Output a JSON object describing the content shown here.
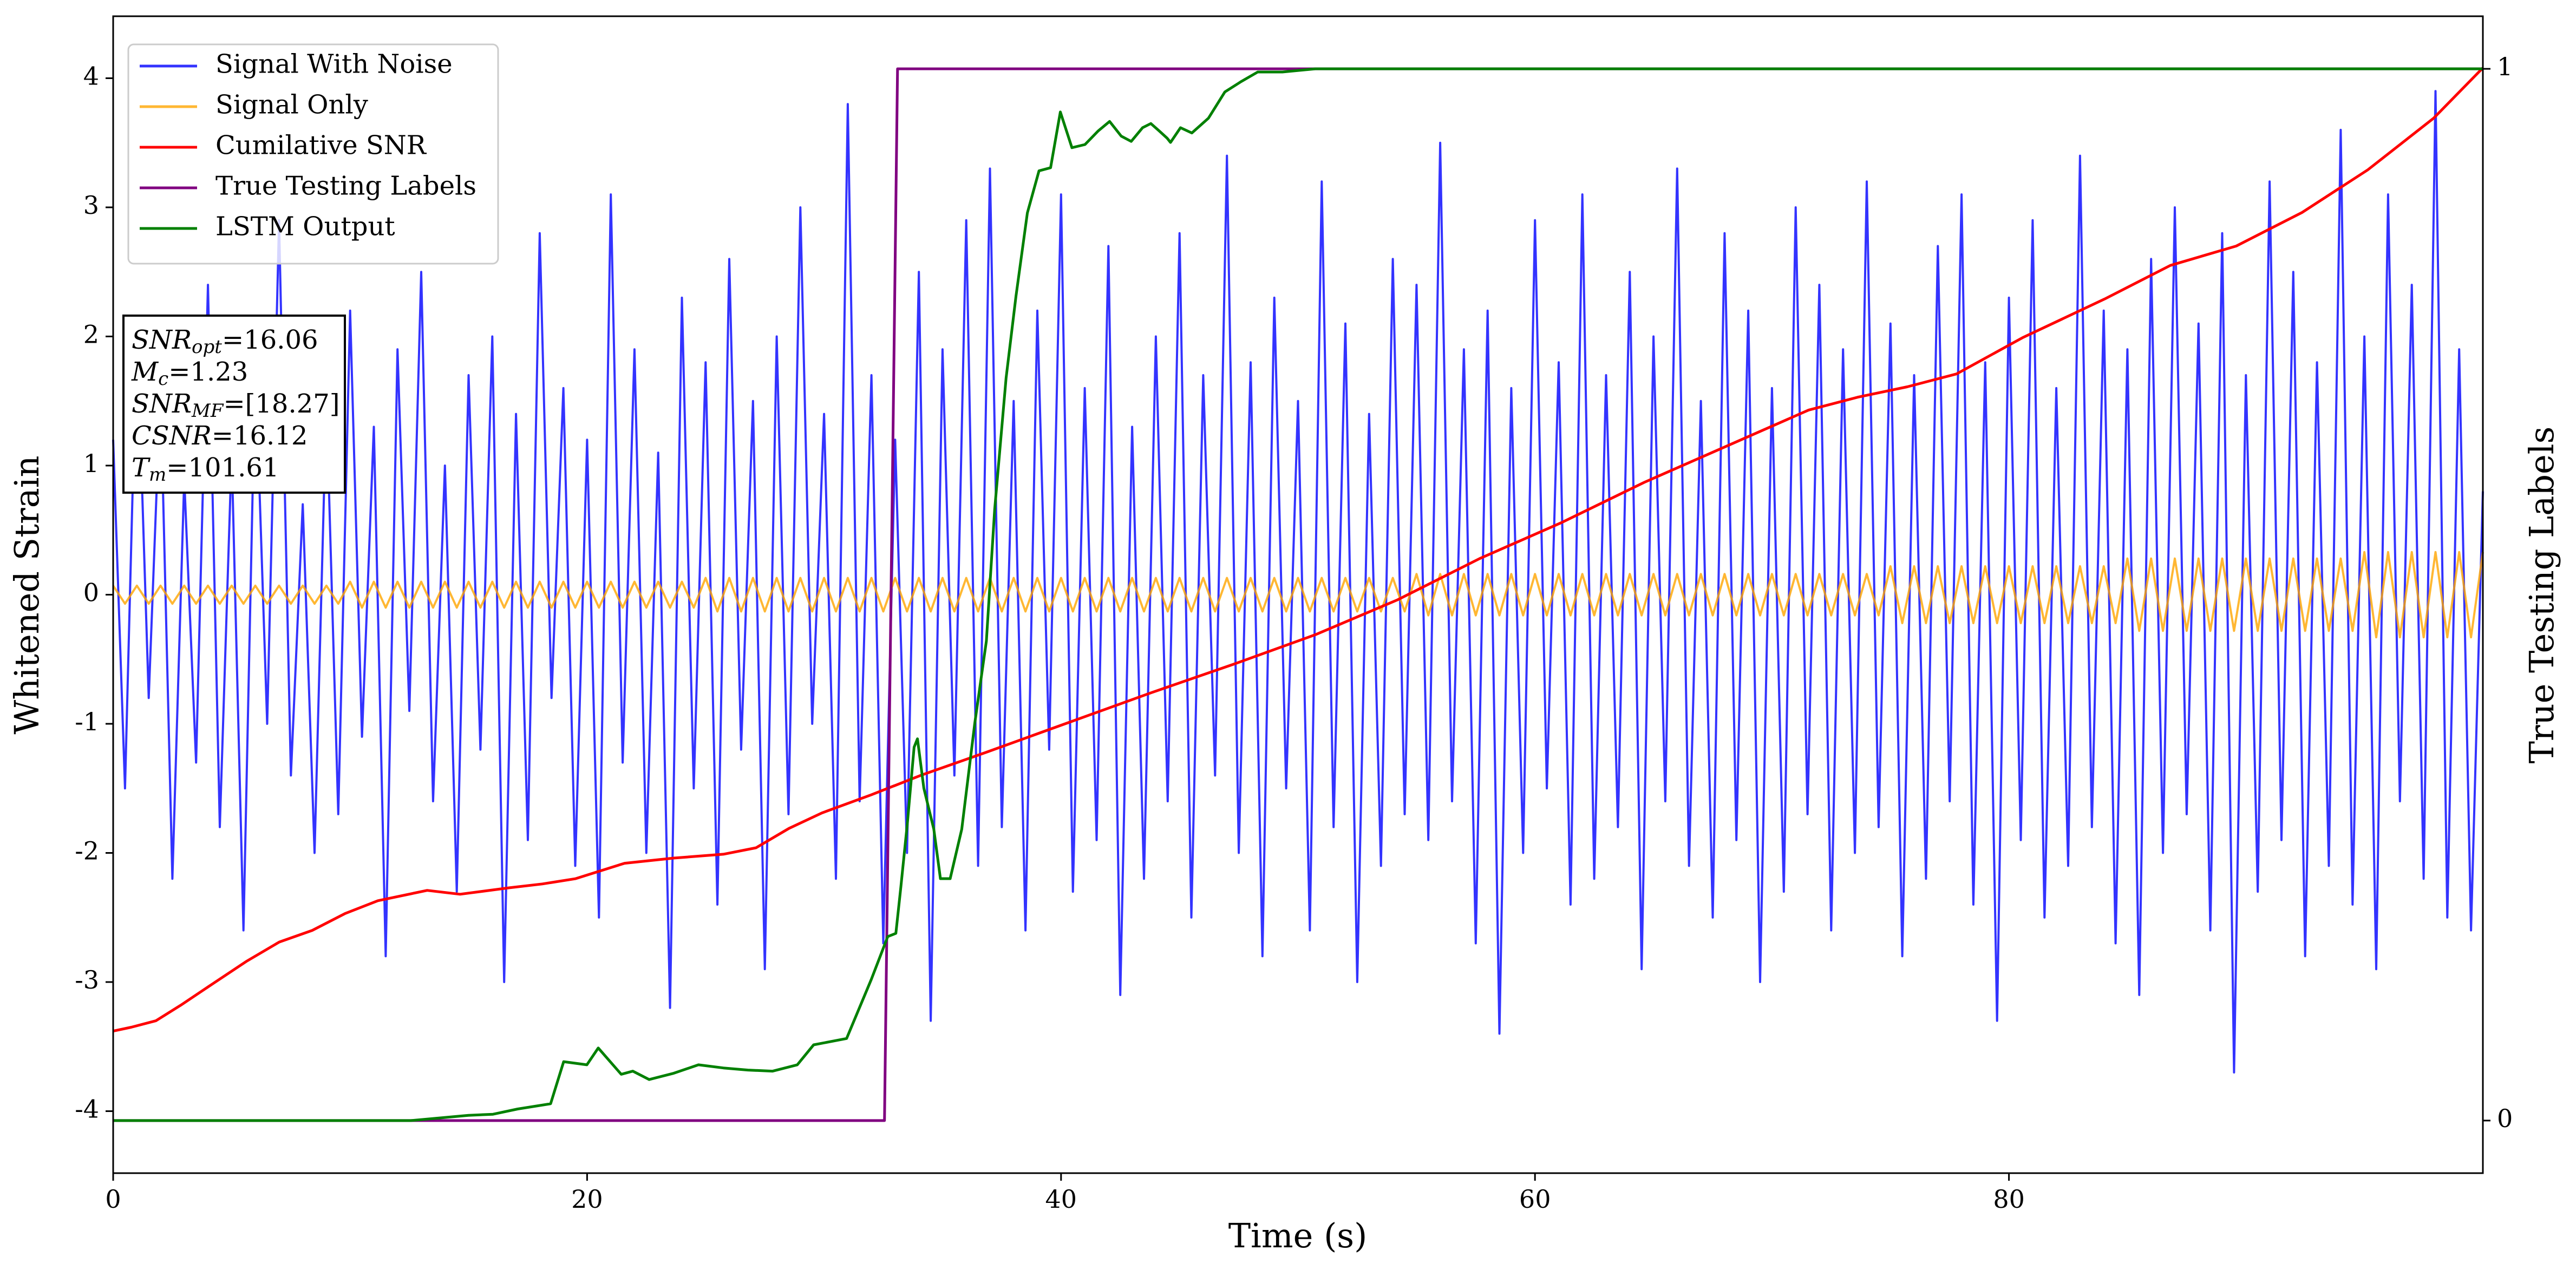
{
  "chart_data": {
    "type": "line",
    "xlabel": "Time (s)",
    "ylabel": "Whitened Strain",
    "y2label": "True Testing Labels",
    "xlim": [
      0,
      100
    ],
    "xticks": [
      0,
      20,
      40,
      60,
      80
    ],
    "ylim": [
      -4.48,
      4.48
    ],
    "yticks": [
      -4,
      -3,
      -2,
      -1,
      0,
      1,
      2,
      3,
      4
    ],
    "y2lim": [
      -0.05,
      1.05
    ],
    "y2ticks": [
      0,
      1
    ],
    "legend": "upper left",
    "opacity": 0.8,
    "x": [
      0,
      0.5,
      1,
      1.5,
      2,
      2.5,
      3,
      3.5,
      4,
      4.5,
      5,
      5.5,
      6,
      6.5,
      7,
      7.5,
      8,
      8.5,
      9,
      9.5,
      10,
      10.5,
      11,
      11.5,
      12,
      12.5,
      13,
      13.5,
      14,
      14.5,
      15,
      15.5,
      16,
      16.5,
      17,
      17.5,
      18,
      18.5,
      19,
      19.5,
      20,
      20.5,
      21,
      21.5,
      22,
      22.5,
      23,
      23.5,
      24,
      24.5,
      25,
      25.5,
      26,
      26.5,
      27,
      27.5,
      28,
      28.5,
      29,
      29.5,
      30,
      30.5,
      31,
      31.5,
      32,
      32.5,
      33,
      33.5,
      34,
      34.5,
      35,
      35.5,
      36,
      36.5,
      37,
      37.5,
      38,
      38.5,
      39,
      39.5,
      40,
      40.5,
      41,
      41.5,
      42,
      42.5,
      43,
      43.5,
      44,
      44.5,
      45,
      45.5,
      46,
      46.5,
      47,
      47.5,
      48,
      48.5,
      49,
      49.5,
      50,
      50.5,
      51,
      51.5,
      52,
      52.5,
      53,
      53.5,
      54,
      54.5,
      55,
      55.5,
      56,
      56.5,
      57,
      57.5,
      58,
      58.5,
      59,
      59.5,
      60,
      60.5,
      61,
      61.5,
      62,
      62.5,
      63,
      63.5,
      64,
      64.5,
      65,
      65.5,
      66,
      66.5,
      67,
      67.5,
      68,
      68.5,
      69,
      69.5,
      70,
      70.5,
      71,
      71.5,
      72,
      72.5,
      73,
      73.5,
      74,
      74.5,
      75,
      75.5,
      76,
      76.5,
      77,
      77.5,
      78,
      78.5,
      79,
      79.5,
      80,
      80.5,
      81,
      81.5,
      82,
      82.5,
      83,
      83.5,
      84,
      84.5,
      85,
      85.5,
      86,
      86.5,
      87,
      87.5,
      88,
      88.5,
      89,
      89.5,
      90,
      90.5,
      91,
      91.5,
      92,
      92.5,
      93,
      93.5,
      94,
      94.5,
      95,
      95.5,
      96,
      96.5,
      97,
      97.5,
      98,
      98.5,
      99,
      99.5,
      100
    ],
    "series": [
      {
        "name": "Signal With Noise",
        "color": "#0000ff",
        "axis": "y",
        "values": [
          1.2,
          -1.5,
          2.1,
          -0.8,
          1.6,
          -2.2,
          0.9,
          -1.3,
          2.4,
          -1.8,
          1.1,
          -2.6,
          1.8,
          -1.0,
          2.9,
          -1.4,
          0.7,
          -2.0,
          1.5,
          -1.7,
          2.2,
          -1.1,
          1.3,
          -2.8,
          1.9,
          -0.9,
          2.5,
          -1.6,
          1.0,
          -2.3,
          1.7,
          -1.2,
          2.0,
          -3.0,
          1.4,
          -1.9,
          2.8,
          -0.8,
          1.6,
          -2.1,
          1.2,
          -2.5,
          3.1,
          -1.3,
          1.9,
          -2.0,
          1.1,
          -3.2,
          2.3,
          -1.5,
          1.8,
          -2.4,
          2.6,
          -1.2,
          1.5,
          -2.9,
          2.0,
          -1.7,
          3.0,
          -1.0,
          1.4,
          -2.2,
          3.8,
          -1.6,
          1.7,
          -2.7,
          1.2,
          -2.0,
          2.5,
          -3.3,
          1.9,
          -1.4,
          2.9,
          -2.1,
          3.3,
          -1.8,
          1.5,
          -2.6,
          2.2,
          -1.2,
          3.1,
          -2.3,
          1.6,
          -1.9,
          2.7,
          -3.1,
          1.3,
          -2.2,
          2.0,
          -1.6,
          2.8,
          -2.5,
          1.7,
          -1.4,
          3.4,
          -2.0,
          1.8,
          -2.8,
          2.3,
          -1.5,
          1.5,
          -2.6,
          3.2,
          -1.8,
          2.1,
          -3.0,
          1.4,
          -2.1,
          2.6,
          -1.7,
          2.4,
          -1.9,
          3.5,
          -1.6,
          1.9,
          -2.7,
          2.2,
          -3.4,
          1.6,
          -2.0,
          2.9,
          -1.5,
          1.8,
          -2.4,
          3.1,
          -2.2,
          1.7,
          -1.8,
          2.5,
          -2.9,
          2.0,
          -1.6,
          3.3,
          -2.1,
          1.5,
          -2.5,
          2.8,
          -1.9,
          2.2,
          -3.0,
          1.6,
          -2.3,
          3.0,
          -1.7,
          2.4,
          -2.6,
          1.9,
          -2.0,
          3.2,
          -1.8,
          2.1,
          -2.8,
          1.7,
          -2.2,
          2.7,
          -1.6,
          3.1,
          -2.4,
          1.8,
          -3.3,
          2.3,
          -1.9,
          2.9,
          -2.5,
          1.6,
          -2.1,
          3.4,
          -1.8,
          2.2,
          -2.7,
          1.9,
          -3.1,
          2.6,
          -2.0,
          3.0,
          -1.7,
          2.1,
          -2.6,
          2.8,
          -3.7,
          1.7,
          -2.3,
          3.2,
          -1.9,
          2.5,
          -2.8,
          1.8,
          -2.1,
          3.6,
          -2.4,
          2.0,
          -2.9,
          3.1,
          -1.6,
          2.4,
          -2.2,
          3.9,
          -2.5,
          1.9,
          -2.6,
          0.8
        ]
      },
      {
        "name": "Signal Only",
        "color": "#ffa500",
        "axis": "y",
        "values": [
          0.07,
          -0.07,
          0.07,
          -0.07,
          0.07,
          -0.07,
          0.07,
          -0.07,
          0.07,
          -0.07,
          0.07,
          -0.07,
          0.07,
          -0.07,
          0.07,
          -0.07,
          0.07,
          -0.07,
          0.07,
          -0.07,
          0.1,
          -0.1,
          0.1,
          -0.1,
          0.1,
          -0.1,
          0.1,
          -0.1,
          0.1,
          -0.1,
          0.1,
          -0.1,
          0.1,
          -0.1,
          0.1,
          -0.1,
          0.1,
          -0.1,
          0.1,
          -0.1,
          0.1,
          -0.1,
          0.1,
          -0.1,
          0.1,
          -0.1,
          0.1,
          -0.1,
          0.1,
          -0.1,
          0.13,
          -0.13,
          0.13,
          -0.13,
          0.13,
          -0.13,
          0.13,
          -0.13,
          0.13,
          -0.13,
          0.13,
          -0.13,
          0.13,
          -0.13,
          0.13,
          -0.13,
          0.13,
          -0.13,
          0.13,
          -0.13,
          0.13,
          -0.13,
          0.13,
          -0.13,
          0.13,
          -0.13,
          0.13,
          -0.13,
          0.13,
          -0.13,
          0.13,
          -0.13,
          0.13,
          -0.13,
          0.13,
          -0.13,
          0.13,
          -0.13,
          0.13,
          -0.13,
          0.13,
          -0.13,
          0.13,
          -0.13,
          0.13,
          -0.13,
          0.13,
          -0.13,
          0.13,
          -0.13,
          0.13,
          -0.13,
          0.13,
          -0.13,
          0.13,
          -0.13,
          0.13,
          -0.13,
          0.13,
          -0.13,
          0.16,
          -0.16,
          0.16,
          -0.16,
          0.16,
          -0.16,
          0.16,
          -0.16,
          0.16,
          -0.16,
          0.16,
          -0.16,
          0.16,
          -0.16,
          0.16,
          -0.16,
          0.16,
          -0.16,
          0.16,
          -0.16,
          0.16,
          -0.16,
          0.16,
          -0.16,
          0.16,
          -0.16,
          0.16,
          -0.16,
          0.16,
          -0.16,
          0.16,
          -0.16,
          0.16,
          -0.16,
          0.16,
          -0.16,
          0.16,
          -0.16,
          0.16,
          -0.16,
          0.22,
          -0.22,
          0.22,
          -0.22,
          0.22,
          -0.22,
          0.22,
          -0.22,
          0.22,
          -0.22,
          0.22,
          -0.22,
          0.22,
          -0.22,
          0.22,
          -0.22,
          0.22,
          -0.22,
          0.22,
          -0.22,
          0.28,
          -0.28,
          0.28,
          -0.28,
          0.28,
          -0.28,
          0.28,
          -0.28,
          0.28,
          -0.28,
          0.28,
          -0.28,
          0.28,
          -0.28,
          0.28,
          -0.28,
          0.28,
          -0.28,
          0.28,
          -0.28,
          0.33,
          -0.33,
          0.33,
          -0.33,
          0.33,
          -0.33,
          0.33,
          -0.33,
          0.33,
          -0.33,
          0.33
        ]
      },
      {
        "name": "Cumilative SNR",
        "color": "#ff0000",
        "axis": "y",
        "x": [
          0,
          0.76,
          1.8,
          2.85,
          4.23,
          5.62,
          7.01,
          8.4,
          9.78,
          11.17,
          13.25,
          14.64,
          16.72,
          18.11,
          19.5,
          21.58,
          23.66,
          25.75,
          27.13,
          28.52,
          29.91,
          31.99,
          34.07,
          36.85,
          40.32,
          43.79,
          47.26,
          50.73,
          54.2,
          57.67,
          61.14,
          64.61,
          68.08,
          71.55,
          73.63,
          75.71,
          77.79,
          80.57,
          84.04,
          86.81,
          89.59,
          92.37,
          95.14,
          97.92,
          100
        ],
        "values": [
          -3.38,
          -3.35,
          -3.3,
          -3.18,
          -3.01,
          -2.84,
          -2.69,
          -2.6,
          -2.47,
          -2.37,
          -2.29,
          -2.32,
          -2.27,
          -2.24,
          -2.2,
          -2.08,
          -2.04,
          -2.01,
          -1.96,
          -1.81,
          -1.69,
          -1.55,
          -1.4,
          -1.22,
          -0.99,
          -0.76,
          -0.54,
          -0.31,
          -0.04,
          0.28,
          0.56,
          0.87,
          1.15,
          1.43,
          1.53,
          1.61,
          1.71,
          1.99,
          2.29,
          2.55,
          2.7,
          2.96,
          3.29,
          3.69,
          4.08
        ]
      },
      {
        "name": "True Testing Labels",
        "color": "#800080",
        "axis": "y2",
        "x": [
          0,
          32.55,
          33.1,
          100
        ],
        "values": [
          0,
          0,
          1,
          1
        ]
      },
      {
        "name": "LSTM Output",
        "color": "#008000",
        "axis": "y2",
        "x": [
          0,
          12.56,
          14.99,
          16.03,
          17.07,
          18.46,
          19.01,
          19.99,
          20.47,
          21.44,
          21.93,
          22.62,
          23.66,
          24.7,
          25.75,
          26.79,
          27.83,
          28.87,
          29.56,
          30.95,
          31.99,
          32.69,
          33.03,
          33.24,
          33.52,
          33.8,
          33.94,
          34.21,
          34.63,
          34.91,
          35.32,
          35.81,
          36.36,
          36.85,
          37.2,
          37.68,
          38.1,
          38.58,
          39.07,
          39.56,
          39.97,
          40.46,
          41.01,
          41.57,
          42.05,
          42.54,
          42.96,
          43.44,
          43.79,
          44.14,
          44.48,
          44.62,
          45.04,
          45.52,
          46.22,
          46.91,
          47.61,
          48.3,
          49.34,
          50.73,
          52.12,
          54.89,
          100
        ],
        "values": [
          0,
          0,
          0.005,
          0.006,
          0.011,
          0.016,
          0.056,
          0.053,
          0.069,
          0.044,
          0.047,
          0.039,
          0.045,
          0.053,
          0.05,
          0.048,
          0.047,
          0.053,
          0.072,
          0.078,
          0.134,
          0.175,
          0.178,
          0.222,
          0.284,
          0.355,
          0.363,
          0.316,
          0.277,
          0.23,
          0.23,
          0.277,
          0.378,
          0.456,
          0.581,
          0.706,
          0.784,
          0.863,
          0.903,
          0.906,
          0.959,
          0.925,
          0.928,
          0.941,
          0.95,
          0.936,
          0.931,
          0.944,
          0.948,
          0.941,
          0.934,
          0.93,
          0.944,
          0.939,
          0.953,
          0.978,
          0.988,
          0.997,
          0.997,
          1,
          1,
          1,
          1
        ]
      }
    ],
    "annotation": [
      {
        "symbol": "SNR",
        "subscript": "opt",
        "text": "=16.06"
      },
      {
        "symbol": "M",
        "subscript": "c",
        "text": "=1.23"
      },
      {
        "symbol": "SNR",
        "subscript": "MF",
        "text": "=[18.27]"
      },
      {
        "symbol": "CSNR",
        "text": "=16.12"
      },
      {
        "symbol": "T",
        "subscript": "m",
        "text": "=101.61"
      }
    ]
  }
}
